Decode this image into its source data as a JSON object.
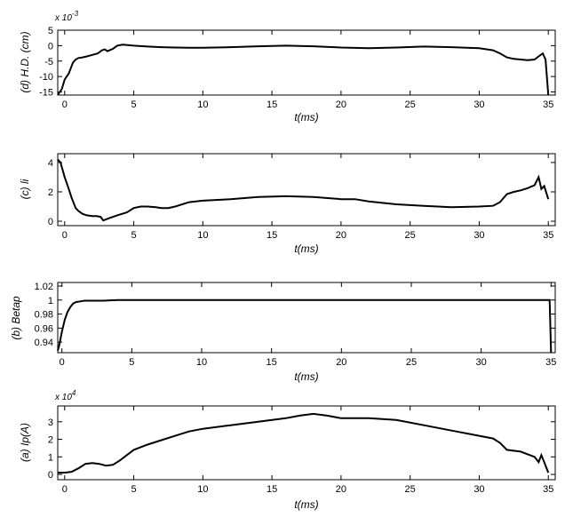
{
  "chart_data": [
    {
      "type": "line",
      "panel": "d",
      "ylabel": "(d) H.D. (cm)",
      "xlabel": "t(ms)",
      "xlim": [
        -0.5,
        35.5
      ],
      "ylim": [
        -16,
        5
      ],
      "exponent_base": "x 10",
      "exponent_power": "-3",
      "xticks": [
        0,
        5,
        10,
        15,
        20,
        25,
        30,
        35
      ],
      "yticks": [
        5,
        0,
        -5,
        -10,
        -15
      ],
      "grid": false,
      "series": [
        {
          "x": [
            -0.5,
            -0.2,
            0,
            0.3,
            0.6,
            0.8,
            1.0,
            1.3,
            1.6,
            2.0,
            2.4,
            2.7,
            2.9,
            3.1,
            3.5,
            3.8,
            4.2,
            5,
            6,
            7,
            8,
            9,
            10,
            12,
            14,
            16,
            18,
            20,
            22,
            24,
            26,
            28,
            30,
            31,
            31.5,
            32,
            32.5,
            33,
            33.5,
            34,
            34.3,
            34.6,
            34.8,
            35
          ],
          "y": [
            -16,
            -14,
            -11,
            -9,
            -5.5,
            -4.5,
            -4,
            -3.8,
            -3.5,
            -3,
            -2.5,
            -1.5,
            -1.2,
            -1.8,
            -1,
            0,
            0.3,
            0,
            -0.3,
            -0.5,
            -0.6,
            -0.7,
            -0.7,
            -0.5,
            -0.2,
            0,
            -0.2,
            -0.6,
            -0.8,
            -0.6,
            -0.3,
            -0.5,
            -0.8,
            -1.5,
            -2.5,
            -3.8,
            -4.3,
            -4.5,
            -4.7,
            -4.5,
            -3.5,
            -2.5,
            -4.5,
            -16
          ]
        }
      ]
    },
    {
      "type": "line",
      "panel": "c",
      "ylabel": "(c) li",
      "xlabel": "t(ms)",
      "xlim": [
        -0.5,
        35.5
      ],
      "ylim": [
        -0.3,
        4.6
      ],
      "xticks": [
        0,
        5,
        10,
        15,
        20,
        25,
        30,
        35
      ],
      "yticks": [
        4,
        2,
        0
      ],
      "grid": false,
      "series": [
        {
          "x": [
            -0.5,
            -0.3,
            0,
            0.3,
            0.5,
            0.8,
            1.0,
            1.3,
            1.6,
            2.0,
            2.3,
            2.6,
            2.8,
            3.2,
            3.8,
            4.5,
            5,
            5.5,
            6.0,
            6.6,
            7.0,
            7.5,
            8,
            9,
            10,
            12,
            14,
            16,
            18,
            20,
            21,
            22,
            24,
            26,
            28,
            30,
            31,
            31.5,
            32,
            32.5,
            33,
            33.5,
            34,
            34.3,
            34.5,
            34.7,
            35
          ],
          "y": [
            4.2,
            4.0,
            3.0,
            2.2,
            1.6,
            0.9,
            0.7,
            0.5,
            0.4,
            0.35,
            0.35,
            0.3,
            0.05,
            0.2,
            0.4,
            0.6,
            0.9,
            1.0,
            1.0,
            0.95,
            0.9,
            0.9,
            1.0,
            1.3,
            1.4,
            1.5,
            1.65,
            1.7,
            1.65,
            1.5,
            1.5,
            1.35,
            1.15,
            1.05,
            0.95,
            1.0,
            1.05,
            1.3,
            1.85,
            2.0,
            2.1,
            2.25,
            2.45,
            3.0,
            2.2,
            2.4,
            1.5
          ]
        }
      ]
    },
    {
      "type": "line",
      "panel": "b",
      "ylabel": "(b) Betap",
      "xlabel": "t(ms)",
      "xlim": [
        -0.3,
        35.3
      ],
      "ylim": [
        0.925,
        1.025
      ],
      "xticks": [
        0,
        5,
        10,
        15,
        20,
        25,
        30,
        35
      ],
      "yticks": [
        1.02,
        1,
        0.98,
        0.96,
        0.94
      ],
      "ytick_labels": [
        "1.02",
        "1",
        "0.98",
        "0.96",
        "0.94"
      ],
      "grid": false,
      "series": [
        {
          "x": [
            -0.3,
            -0.2,
            0,
            0.2,
            0.4,
            0.6,
            0.8,
            1.0,
            1.3,
            1.6,
            2.0,
            3.0,
            4.0,
            5,
            10,
            20,
            30,
            34.8,
            34.9,
            35.0
          ],
          "y": [
            0.928,
            0.935,
            0.955,
            0.972,
            0.983,
            0.99,
            0.995,
            0.997,
            0.998,
            0.999,
            0.999,
            0.999,
            1.0,
            1.0,
            1.0,
            1.0,
            1.0,
            1.0,
            1.0,
            0.925
          ]
        }
      ]
    },
    {
      "type": "line",
      "panel": "a",
      "ylabel": "(a) Ip(A)",
      "xlabel": "t(ms)",
      "xlim": [
        -0.5,
        35.5
      ],
      "ylim": [
        -0.3,
        3.9
      ],
      "exponent_base": "x 10",
      "exponent_power": "4",
      "xticks": [
        0,
        5,
        10,
        15,
        20,
        25,
        30,
        35
      ],
      "yticks": [
        3,
        2,
        1,
        0
      ],
      "grid": false,
      "series": [
        {
          "x": [
            -0.5,
            0,
            0.5,
            1.0,
            1.5,
            2.0,
            2.5,
            3.0,
            3.5,
            4.0,
            4.5,
            5,
            6,
            7,
            8,
            9,
            10,
            12,
            14,
            16,
            17,
            18,
            19,
            20,
            22,
            24,
            26,
            28,
            30,
            31,
            31.5,
            32,
            33,
            34,
            34.3,
            34.5,
            34.7,
            35
          ],
          "y": [
            0.1,
            0.1,
            0.15,
            0.35,
            0.6,
            0.65,
            0.6,
            0.5,
            0.55,
            0.8,
            1.1,
            1.4,
            1.7,
            1.95,
            2.2,
            2.45,
            2.6,
            2.8,
            3.0,
            3.2,
            3.35,
            3.45,
            3.35,
            3.2,
            3.2,
            3.1,
            2.8,
            2.5,
            2.2,
            2.05,
            1.8,
            1.4,
            1.3,
            1.0,
            0.7,
            1.1,
            0.7,
            0.1
          ]
        }
      ]
    }
  ]
}
